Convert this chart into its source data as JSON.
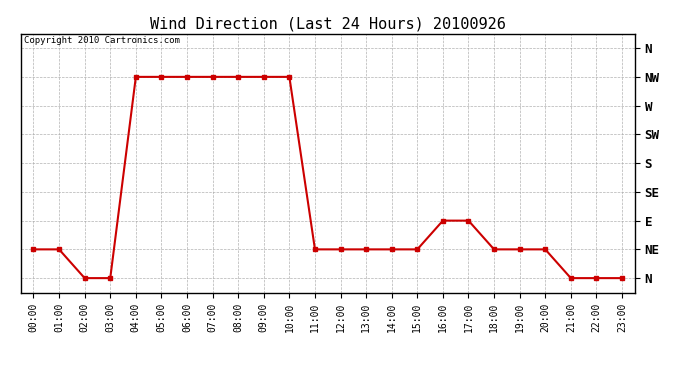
{
  "title": "Wind Direction (Last 24 Hours) 20100926",
  "copyright_text": "Copyright 2010 Cartronics.com",
  "x_labels": [
    "00:00",
    "01:00",
    "02:00",
    "03:00",
    "04:00",
    "05:00",
    "06:00",
    "07:00",
    "08:00",
    "09:00",
    "10:00",
    "11:00",
    "12:00",
    "13:00",
    "14:00",
    "15:00",
    "16:00",
    "17:00",
    "18:00",
    "19:00",
    "20:00",
    "21:00",
    "22:00",
    "23:00"
  ],
  "y_labels": [
    "N",
    "NE",
    "E",
    "SE",
    "S",
    "SW",
    "W",
    "NW",
    "N"
  ],
  "y_values": [
    0,
    1,
    2,
    3,
    4,
    5,
    6,
    7,
    8
  ],
  "wind_data": [
    {
      "hour": 0,
      "dir": 1
    },
    {
      "hour": 1,
      "dir": 1
    },
    {
      "hour": 2,
      "dir": 0
    },
    {
      "hour": 3,
      "dir": 0
    },
    {
      "hour": 4,
      "dir": 7
    },
    {
      "hour": 5,
      "dir": 7
    },
    {
      "hour": 6,
      "dir": 7
    },
    {
      "hour": 7,
      "dir": 7
    },
    {
      "hour": 8,
      "dir": 7
    },
    {
      "hour": 9,
      "dir": 7
    },
    {
      "hour": 10,
      "dir": 7
    },
    {
      "hour": 11,
      "dir": 1
    },
    {
      "hour": 12,
      "dir": 1
    },
    {
      "hour": 13,
      "dir": 1
    },
    {
      "hour": 14,
      "dir": 1
    },
    {
      "hour": 15,
      "dir": 1
    },
    {
      "hour": 16,
      "dir": 2
    },
    {
      "hour": 17,
      "dir": 2
    },
    {
      "hour": 18,
      "dir": 1
    },
    {
      "hour": 19,
      "dir": 1
    },
    {
      "hour": 20,
      "dir": 1
    },
    {
      "hour": 21,
      "dir": 0
    },
    {
      "hour": 22,
      "dir": 0
    },
    {
      "hour": 23,
      "dir": 0
    }
  ],
  "line_color": "#cc0000",
  "marker": "s",
  "marker_size": 3,
  "bg_color": "#ffffff",
  "plot_bg_color": "#ffffff",
  "grid_color": "#aaaaaa",
  "title_fontsize": 11,
  "tick_fontsize": 7,
  "copyright_fontsize": 6.5
}
